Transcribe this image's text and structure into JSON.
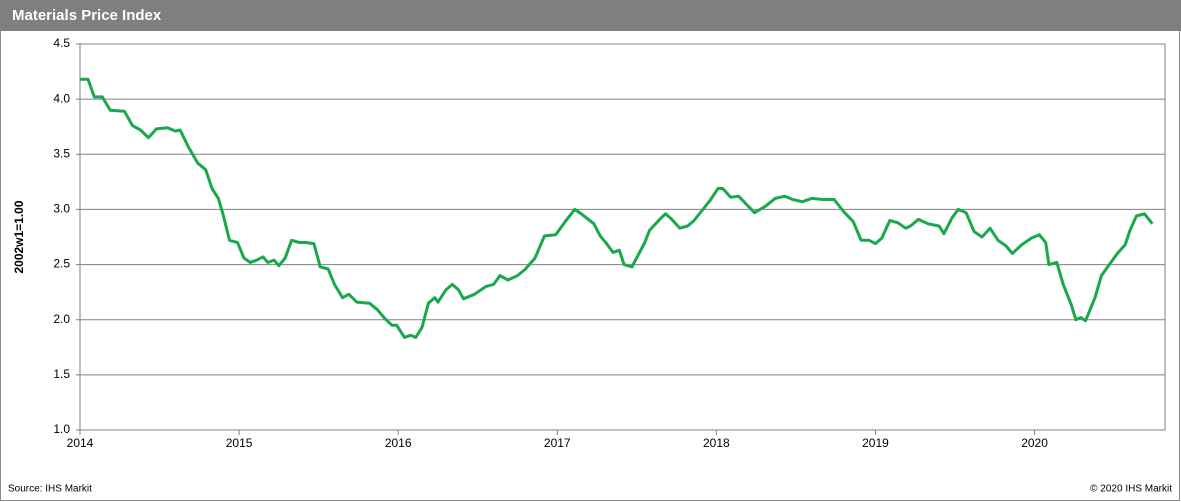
{
  "chart_data": {
    "type": "line",
    "title": "Materials Price Index",
    "y_label": "2002w1=1.00",
    "source": "Source: IHS Markit",
    "copyright": "© 2020 IHS Markit",
    "xlim": [
      2014,
      2020.82
    ],
    "xticks": [
      2014,
      2015,
      2016,
      2017,
      2018,
      2019,
      2020
    ],
    "ylim": [
      1,
      4.5
    ],
    "yticks": [
      {
        "value": 1,
        "label": "1.0"
      },
      1.5,
      {
        "value": 2,
        "label": "2.0"
      },
      2.5,
      {
        "value": 3,
        "label": "3.0"
      },
      3.5,
      {
        "value": 4,
        "label": "4.0"
      },
      4.5
    ],
    "grid": true,
    "x": [
      2014.0,
      2014.05,
      2014.09,
      2014.14,
      2014.19,
      2014.28,
      2014.33,
      2014.38,
      2014.43,
      2014.48,
      2014.55,
      2014.6,
      2014.63,
      2014.68,
      2014.74,
      2014.79,
      2014.83,
      2014.87,
      2014.9,
      2014.94,
      2014.99,
      2015.03,
      2015.07,
      2015.11,
      2015.15,
      2015.18,
      2015.22,
      2015.25,
      2015.29,
      2015.33,
      2015.38,
      2015.42,
      2015.47,
      2015.51,
      2015.56,
      2015.6,
      2015.65,
      2015.69,
      2015.74,
      2015.82,
      2015.87,
      2015.91,
      2015.96,
      2015.99,
      2016.04,
      2016.08,
      2016.11,
      2016.15,
      2016.19,
      2016.23,
      2016.25,
      2016.3,
      2016.34,
      2016.38,
      2016.41,
      2016.48,
      2016.55,
      2016.6,
      2016.64,
      2016.69,
      2016.75,
      2016.8,
      2016.86,
      2016.92,
      2016.99,
      2017.05,
      2017.11,
      2017.16,
      2017.23,
      2017.27,
      2017.31,
      2017.35,
      2017.39,
      2017.42,
      2017.47,
      2017.51,
      2017.55,
      2017.58,
      2017.65,
      2017.68,
      2017.72,
      2017.77,
      2017.82,
      2017.86,
      2017.91,
      2017.96,
      2018.01,
      2018.04,
      2018.09,
      2018.14,
      2018.18,
      2018.24,
      2018.31,
      2018.37,
      2018.43,
      2018.48,
      2018.54,
      2018.6,
      2018.67,
      2018.74,
      2018.8,
      2018.86,
      2018.91,
      2018.96,
      2019.0,
      2019.04,
      2019.09,
      2019.14,
      2019.19,
      2019.22,
      2019.27,
      2019.33,
      2019.4,
      2019.43,
      2019.48,
      2019.52,
      2019.57,
      2019.62,
      2019.67,
      2019.72,
      2019.77,
      2019.82,
      2019.86,
      2019.92,
      2019.98,
      2020.03,
      2020.07,
      2020.09,
      2020.14,
      2020.18,
      2020.23,
      2020.26,
      2020.29,
      2020.32,
      2020.38,
      2020.42,
      2020.47,
      2020.52,
      2020.57,
      2020.6,
      2020.64,
      2020.69,
      2020.73,
      2020.74
    ],
    "series": [
      {
        "name": "Materials Price Index",
        "color": "#1aa84c",
        "values": [
          4.18,
          4.18,
          4.02,
          4.02,
          3.9,
          3.89,
          3.76,
          3.72,
          3.65,
          3.73,
          3.74,
          3.71,
          3.72,
          3.57,
          3.42,
          3.36,
          3.19,
          3.1,
          2.95,
          2.72,
          2.7,
          2.56,
          2.52,
          2.54,
          2.57,
          2.52,
          2.54,
          2.49,
          2.56,
          2.72,
          2.7,
          2.7,
          2.69,
          2.48,
          2.46,
          2.32,
          2.2,
          2.23,
          2.16,
          2.15,
          2.09,
          2.02,
          1.95,
          1.95,
          1.84,
          1.86,
          1.84,
          1.93,
          2.15,
          2.2,
          2.16,
          2.27,
          2.32,
          2.27,
          2.19,
          2.23,
          2.3,
          2.32,
          2.4,
          2.36,
          2.4,
          2.46,
          2.56,
          2.76,
          2.77,
          2.89,
          3.0,
          2.95,
          2.87,
          2.76,
          2.69,
          2.61,
          2.63,
          2.5,
          2.48,
          2.59,
          2.7,
          2.81,
          2.92,
          2.96,
          2.91,
          2.83,
          2.85,
          2.9,
          2.99,
          3.08,
          3.19,
          3.19,
          3.11,
          3.12,
          3.06,
          2.97,
          3.03,
          3.1,
          3.12,
          3.09,
          3.07,
          3.1,
          3.09,
          3.09,
          2.98,
          2.89,
          2.72,
          2.72,
          2.69,
          2.74,
          2.9,
          2.88,
          2.83,
          2.85,
          2.91,
          2.87,
          2.85,
          2.78,
          2.92,
          3.0,
          2.97,
          2.8,
          2.75,
          2.83,
          2.72,
          2.67,
          2.6,
          2.68,
          2.74,
          2.77,
          2.7,
          2.5,
          2.52,
          2.32,
          2.14,
          2.0,
          2.02,
          1.99,
          2.2,
          2.4,
          2.5,
          2.6,
          2.68,
          2.81,
          2.94,
          2.96,
          2.89,
          2.87
        ]
      }
    ]
  }
}
